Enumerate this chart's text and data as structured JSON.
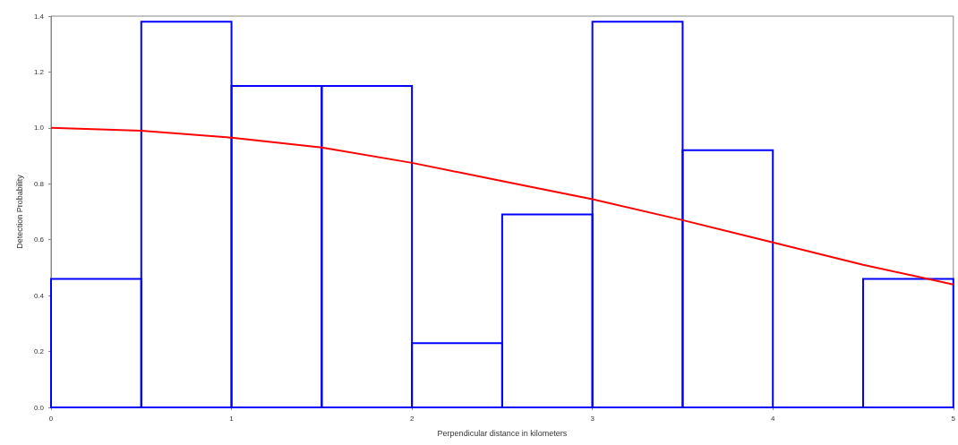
{
  "chart_data": {
    "type": "histogram",
    "xlabel": "Perpendicular distance in kilometers",
    "ylabel": "Detection Probability",
    "bins": [
      0,
      0.5,
      1,
      1.5,
      2,
      2.5,
      3,
      3.5,
      4,
      4.5,
      5
    ],
    "values": [
      0.46,
      1.38,
      1.15,
      1.15,
      0.23,
      0.69,
      1.38,
      0.92,
      0,
      0.46
    ],
    "color": "#0000ff",
    "series": [
      {
        "type": "line",
        "color": "#ff0000",
        "x": [
          0,
          0.5,
          1,
          1.5,
          2,
          2.5,
          3,
          3.5,
          4,
          4.5,
          5
        ],
        "values": [
          1.0,
          0.99,
          0.965,
          0.93,
          0.875,
          0.81,
          0.745,
          0.67,
          0.59,
          0.51,
          0.44
        ]
      }
    ],
    "xlim": [
      0,
      5
    ],
    "xticks": [
      0,
      1,
      2,
      3,
      4,
      5
    ],
    "ylim": [
      0,
      1.4
    ],
    "yticks": [
      {
        "value": 0,
        "label": "0.0"
      },
      {
        "value": 0.2,
        "label": "0.2"
      },
      {
        "value": 0.4,
        "label": "0.4"
      },
      {
        "value": 0.6,
        "label": "0.6"
      },
      {
        "value": 0.8,
        "label": "0.8"
      },
      {
        "value": 1,
        "label": "1.0"
      },
      {
        "value": 1.2,
        "label": "1.2"
      },
      {
        "value": 1.4,
        "label": "1.4"
      }
    ],
    "grid": false,
    "marker": "none",
    "line_style": "solid"
  }
}
